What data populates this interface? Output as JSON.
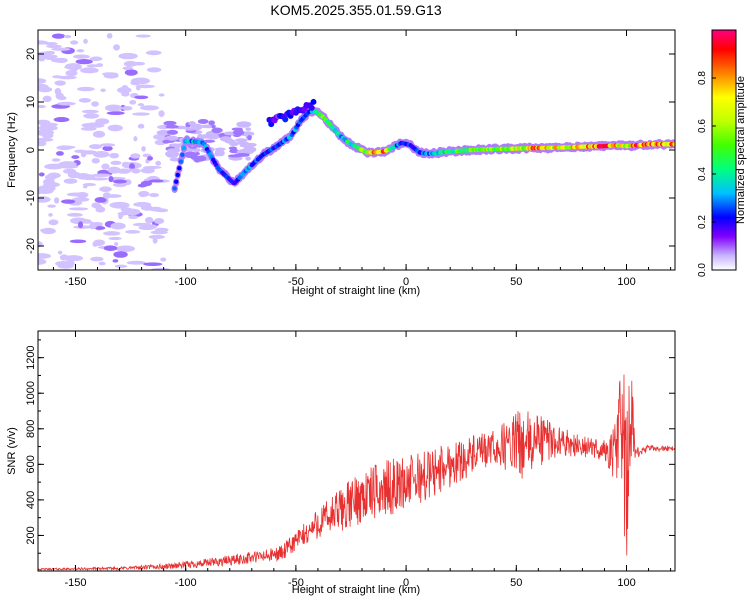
{
  "title": "KOM5.2025.355.01.59.G13",
  "chart_data": [
    {
      "type": "heatmap",
      "xlabel": "Height of straight line (km)",
      "ylabel": "Frequency (Hz)",
      "xlim": [
        -167,
        122
      ],
      "ylim": [
        -25,
        25
      ],
      "xticks": [
        -150,
        -100,
        -50,
        0,
        50,
        100
      ],
      "xtick_labels": [
        "-150",
        "-100",
        "-50",
        "0",
        "50",
        "100"
      ],
      "yticks": [
        -20,
        -10,
        0,
        10,
        20
      ],
      "ytick_labels": [
        "-20",
        "-10",
        "0",
        "10",
        "20"
      ],
      "colorbar": {
        "label": "Normalized spectral amplitude",
        "range": [
          0,
          1
        ],
        "ticks": [
          0.0,
          0.2,
          0.4,
          0.6,
          0.8
        ],
        "tick_labels": [
          "0.0",
          "0.2",
          "0.4",
          "0.6",
          "0.8"
        ],
        "colors": [
          "#ffffff",
          "#c8b4ff",
          "#8000ff",
          "#0000ff",
          "#00c0ff",
          "#00ff80",
          "#40ff00",
          "#c0ff00",
          "#ffff00",
          "#ff8000",
          "#ff0000",
          "#ff0080"
        ]
      },
      "ridge": {
        "x": [
          -105,
          -100,
          -92,
          -85,
          -78,
          -72,
          -65,
          -58,
          -52,
          -48,
          -44,
          -41,
          -38,
          -34,
          -30,
          -26,
          -22,
          -18,
          -14,
          -10,
          -6,
          -2,
          2,
          6,
          10,
          20,
          30,
          40,
          50,
          60,
          70,
          80,
          90,
          95,
          100,
          105,
          110,
          122
        ],
        "freq": [
          -8,
          2,
          1.5,
          -4,
          -7,
          -4,
          -1,
          1,
          3,
          6,
          8,
          8,
          7,
          5,
          3,
          1.5,
          0.5,
          -0.5,
          -0.5,
          -0.3,
          0.5,
          1.5,
          1,
          -0.5,
          -0.8,
          -0.3,
          0,
          0.2,
          0.3,
          0.4,
          0.5,
          0.7,
          0.8,
          1,
          0.8,
          1,
          1.2,
          1.2
        ],
        "amplitude": [
          0.3,
          0.4,
          0.35,
          0.3,
          0.25,
          0.35,
          0.3,
          0.3,
          0.35,
          0.35,
          0.3,
          0.4,
          0.55,
          0.45,
          0.4,
          0.45,
          0.5,
          0.65,
          0.95,
          0.8,
          0.4,
          0.3,
          0.3,
          0.3,
          0.35,
          0.5,
          0.6,
          0.6,
          0.65,
          0.85,
          0.7,
          0.8,
          0.9,
          0.85,
          0.6,
          0.9,
          0.85,
          0.8
        ]
      },
      "upper_branch": {
        "x": [
          -62,
          -58,
          -54,
          -50,
          -46,
          -42
        ],
        "freq": [
          6,
          6.5,
          7,
          8,
          9,
          9.5
        ]
      },
      "noise_region_x": [
        -167,
        -120
      ]
    },
    {
      "type": "line",
      "xlabel": "Height of straight line (km)",
      "ylabel": "SNR (v/v)",
      "xlim": [
        -167,
        122
      ],
      "ylim": [
        0,
        1350
      ],
      "xticks": [
        -150,
        -100,
        -50,
        0,
        50,
        100
      ],
      "xtick_labels": [
        "-150",
        "-100",
        "-50",
        "0",
        "50",
        "100"
      ],
      "yticks": [
        200,
        400,
        600,
        800,
        1000,
        1200
      ],
      "ytick_labels": [
        "200",
        "400",
        "600",
        "800",
        "1000",
        "1200"
      ],
      "color": "#e83030",
      "series": [
        {
          "name": "SNR",
          "x": [
            -167,
            -150,
            -130,
            -110,
            -100,
            -90,
            -80,
            -70,
            -60,
            -55,
            -50,
            -45,
            -40,
            -35,
            -30,
            -25,
            -20,
            -10,
            0,
            10,
            20,
            30,
            40,
            50,
            55,
            60,
            70,
            80,
            90,
            95,
            98,
            100,
            102,
            104,
            110,
            122
          ],
          "values": [
            10,
            12,
            15,
            25,
            35,
            45,
            60,
            75,
            90,
            110,
            170,
            210,
            270,
            300,
            340,
            380,
            420,
            460,
            500,
            540,
            600,
            650,
            690,
            720,
            700,
            740,
            730,
            700,
            680,
            650,
            900,
            400,
            900,
            660,
            690,
            690
          ],
          "jitter": [
            5,
            6,
            8,
            15,
            20,
            25,
            30,
            35,
            40,
            50,
            60,
            70,
            90,
            110,
            130,
            140,
            150,
            160,
            150,
            150,
            130,
            110,
            100,
            180,
            200,
            160,
            80,
            60,
            60,
            200,
            400,
            500,
            300,
            30,
            20,
            15
          ]
        }
      ]
    }
  ]
}
